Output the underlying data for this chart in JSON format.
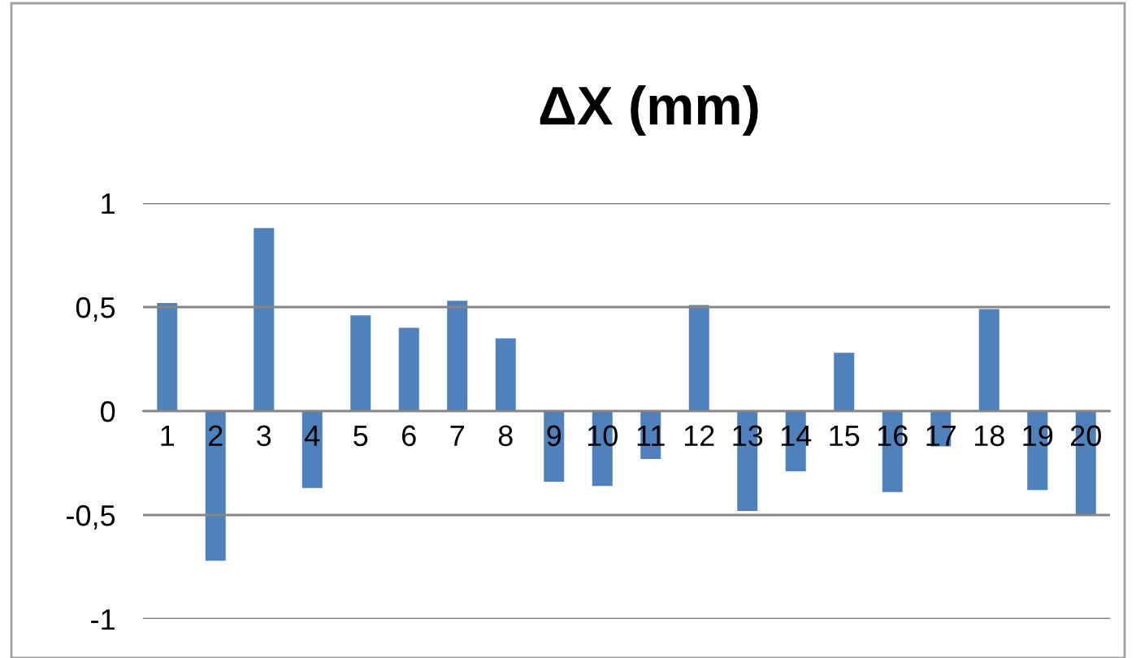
{
  "chart_data": {
    "type": "bar",
    "title": "ΔX (mm)",
    "categories": [
      "1",
      "2",
      "3",
      "4",
      "5",
      "6",
      "7",
      "8",
      "9",
      "10",
      "11",
      "12",
      "13",
      "14",
      "15",
      "16",
      "17",
      "18",
      "19",
      "20"
    ],
    "values": [
      0.52,
      -0.72,
      0.88,
      -0.37,
      0.46,
      0.4,
      0.53,
      0.35,
      -0.34,
      -0.36,
      -0.23,
      0.51,
      -0.48,
      -0.29,
      0.28,
      -0.39,
      -0.17,
      0.49,
      -0.38,
      -0.5
    ],
    "color": "#4f81bd",
    "ylim": [
      -1,
      1
    ],
    "yticks": [
      {
        "value": -1,
        "label": "-1"
      },
      {
        "value": -0.5,
        "label": "-0,5"
      },
      {
        "value": 0,
        "label": "0"
      },
      {
        "value": 0.5,
        "label": "0,5"
      },
      {
        "value": 1,
        "label": "1"
      }
    ],
    "grid": "y",
    "legend": false
  }
}
